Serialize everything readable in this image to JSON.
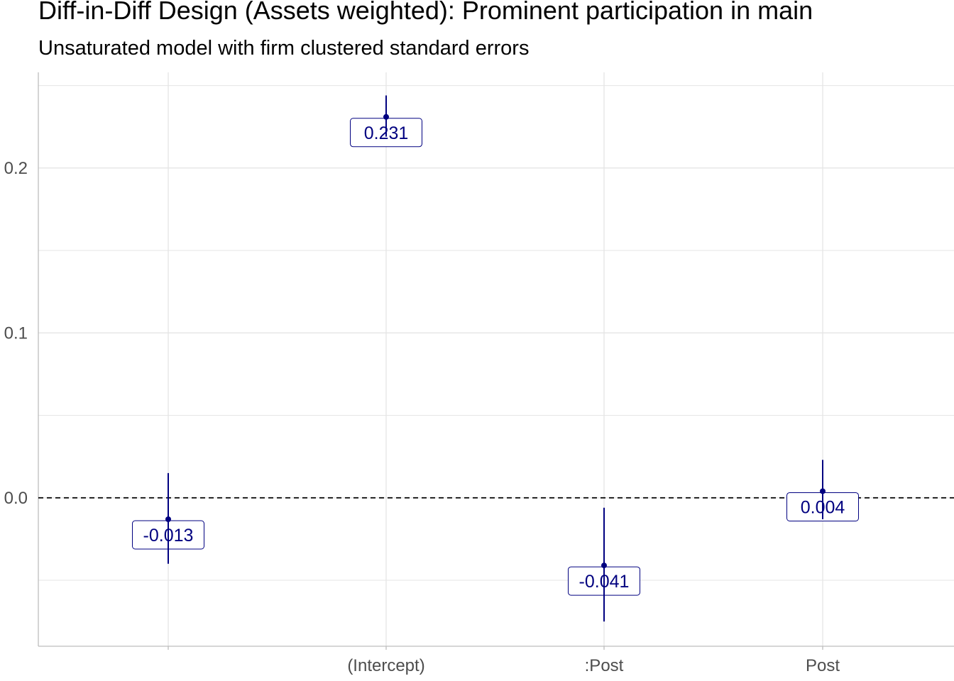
{
  "title": "Diff-in-Diff Design (Assets weighted): Prominent participation in main",
  "subtitle": "Unsaturated model with firm clustered standard errors",
  "colors": {
    "estimate": "#000080",
    "grid": "#e5e5e5",
    "axis": "#bdbdbd",
    "tick_text": "#4d4d4d",
    "reference_line": "#000000"
  },
  "chart_data": {
    "type": "pointrange",
    "categories": [
      "",
      "(Intercept)",
      ":Post",
      "Post"
    ],
    "estimates": [
      -0.013,
      0.231,
      -0.041,
      0.004
    ],
    "labels": [
      "-0.013",
      "0.231",
      "-0.041",
      "0.004"
    ],
    "ci_lower": [
      -0.04,
      0.219,
      -0.075,
      -0.013
    ],
    "ci_upper": [
      0.015,
      0.244,
      -0.006,
      0.023
    ],
    "ylim": [
      -0.09,
      0.258
    ],
    "yticks": [
      0.0,
      0.1,
      0.2
    ],
    "ytick_labels": [
      "0.0",
      "0.1",
      "0.2"
    ],
    "reference_line": 0,
    "xlabel": "",
    "ylabel": "",
    "grid": true,
    "legend": "none"
  }
}
